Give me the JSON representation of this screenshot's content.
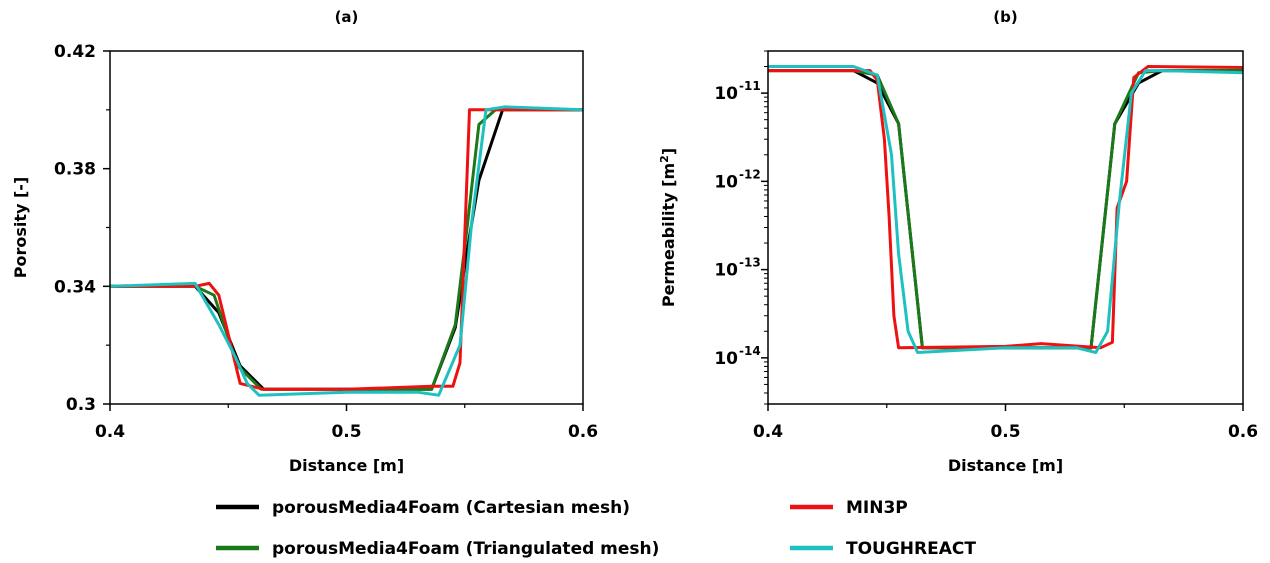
{
  "chart_data": [
    {
      "type": "line",
      "title": "(a)",
      "xlabel": "Distance [m]",
      "ylabel": "Porosity [-]",
      "xlim": [
        0.4,
        0.6
      ],
      "ylim": [
        0.3,
        0.42
      ],
      "xticks": [
        0.4,
        0.5,
        0.6
      ],
      "xtick_labels": [
        "0.4",
        "0.5",
        "0.6"
      ],
      "yticks": [
        0.3,
        0.34,
        0.38,
        0.42
      ],
      "ytick_labels": [
        "0.3",
        "0.34",
        "0.38",
        "0.42"
      ],
      "grid": false,
      "series": [
        {
          "name": "porousMedia4Foam (Cartesian mesh)",
          "color": "#000000",
          "x": [
            0.4,
            0.436,
            0.446,
            0.455,
            0.465,
            0.5,
            0.536,
            0.546,
            0.551,
            0.556,
            0.566,
            0.6
          ],
          "y": [
            0.34,
            0.34,
            0.331,
            0.313,
            0.305,
            0.305,
            0.305,
            0.326,
            0.352,
            0.376,
            0.4,
            0.4
          ]
        },
        {
          "name": "porousMedia4Foam (Triangulated mesh)",
          "color": "#1a7a1a",
          "x": [
            0.4,
            0.436,
            0.444,
            0.454,
            0.464,
            0.5,
            0.536,
            0.546,
            0.551,
            0.556,
            0.563,
            0.6
          ],
          "y": [
            0.34,
            0.34,
            0.337,
            0.313,
            0.305,
            0.305,
            0.305,
            0.327,
            0.36,
            0.395,
            0.4,
            0.4
          ]
        },
        {
          "name": "MIN3P",
          "color": "#ee1111",
          "x": [
            0.4,
            0.436,
            0.442,
            0.446,
            0.455,
            0.465,
            0.5,
            0.536,
            0.545,
            0.548,
            0.552,
            0.56,
            0.6
          ],
          "y": [
            0.34,
            0.34,
            0.341,
            0.337,
            0.307,
            0.305,
            0.305,
            0.306,
            0.306,
            0.314,
            0.4,
            0.4,
            0.4
          ]
        },
        {
          "name": "TOUGHREACT",
          "color": "#1ec0c0",
          "x": [
            0.4,
            0.436,
            0.446,
            0.453,
            0.458,
            0.463,
            0.5,
            0.53,
            0.539,
            0.548,
            0.553,
            0.559,
            0.567,
            0.6
          ],
          "y": [
            0.34,
            0.341,
            0.327,
            0.316,
            0.307,
            0.303,
            0.304,
            0.304,
            0.303,
            0.32,
            0.362,
            0.4,
            0.401,
            0.4
          ]
        }
      ]
    },
    {
      "type": "line",
      "title": "(b)",
      "xlabel": "Distance [m]",
      "ylabel": "Permeability [m",
      "ylabel_sup": "2",
      "ylabel_end": "]",
      "yscale": "log",
      "xlim": [
        0.4,
        0.6
      ],
      "ylim": [
        3e-15,
        3e-11
      ],
      "xticks": [
        0.4,
        0.5,
        0.6
      ],
      "xtick_labels": [
        "0.4",
        "0.5",
        "0.6"
      ],
      "yticks": [
        1e-14,
        1e-13,
        1e-12,
        1e-11
      ],
      "ytick_base": "10",
      "ytick_exps": [
        "-14",
        "-13",
        "-12",
        "-11"
      ],
      "grid": false,
      "series": [
        {
          "name": "porousMedia4Foam (Cartesian mesh)",
          "color": "#000000",
          "x": [
            0.4,
            0.436,
            0.446,
            0.455,
            0.465,
            0.5,
            0.536,
            0.546,
            0.556,
            0.566,
            0.6
          ],
          "y": [
            1.8e-11,
            1.8e-11,
            1.3e-11,
            4.5e-12,
            1.3e-14,
            1.3e-14,
            1.3e-14,
            4.5e-12,
            1.3e-11,
            1.8e-11,
            1.8e-11
          ]
        },
        {
          "name": "porousMedia4Foam (Triangulated mesh)",
          "color": "#1a7a1a",
          "x": [
            0.4,
            0.436,
            0.446,
            0.455,
            0.465,
            0.5,
            0.536,
            0.546,
            0.556,
            0.566,
            0.6
          ],
          "y": [
            1.8e-11,
            1.8e-11,
            1.6e-11,
            4.5e-12,
            1.3e-14,
            1.3e-14,
            1.3e-14,
            4.5e-12,
            1.7e-11,
            1.8e-11,
            1.8e-11
          ]
        },
        {
          "name": "MIN3P",
          "color": "#ee1111",
          "x": [
            0.4,
            0.443,
            0.446,
            0.449,
            0.451,
            0.453,
            0.455,
            0.5,
            0.515,
            0.54,
            0.545,
            0.547,
            0.551,
            0.554,
            0.56,
            0.6
          ],
          "y": [
            1.8e-11,
            1.8e-11,
            1.4e-11,
            3e-12,
            4e-13,
            3e-14,
            1.3e-14,
            1.35e-14,
            1.45e-14,
            1.3e-14,
            1.5e-14,
            5e-13,
            1e-12,
            1.5e-11,
            2e-11,
            1.95e-11
          ]
        },
        {
          "name": "TOUGHREACT",
          "color": "#1ec0c0",
          "x": [
            0.4,
            0.436,
            0.446,
            0.452,
            0.455,
            0.459,
            0.463,
            0.5,
            0.53,
            0.538,
            0.543,
            0.548,
            0.553,
            0.559,
            0.567,
            0.6
          ],
          "y": [
            2e-11,
            2e-11,
            1.6e-11,
            2e-12,
            1.5e-13,
            2e-14,
            1.15e-14,
            1.3e-14,
            1.3e-14,
            1.15e-14,
            2e-14,
            6e-13,
            1e-11,
            1.8e-11,
            1.8e-11,
            1.7e-11
          ]
        }
      ]
    }
  ],
  "legend": {
    "position": "bottom",
    "entries": [
      {
        "label": "porousMedia4Foam (Cartesian mesh)",
        "color": "#000000"
      },
      {
        "label": "MIN3P",
        "color": "#ee1111"
      },
      {
        "label": "porousMedia4Foam (Triangulated mesh)",
        "color": "#1a7a1a"
      },
      {
        "label": "TOUGHREACT",
        "color": "#1ec0c0"
      }
    ]
  }
}
